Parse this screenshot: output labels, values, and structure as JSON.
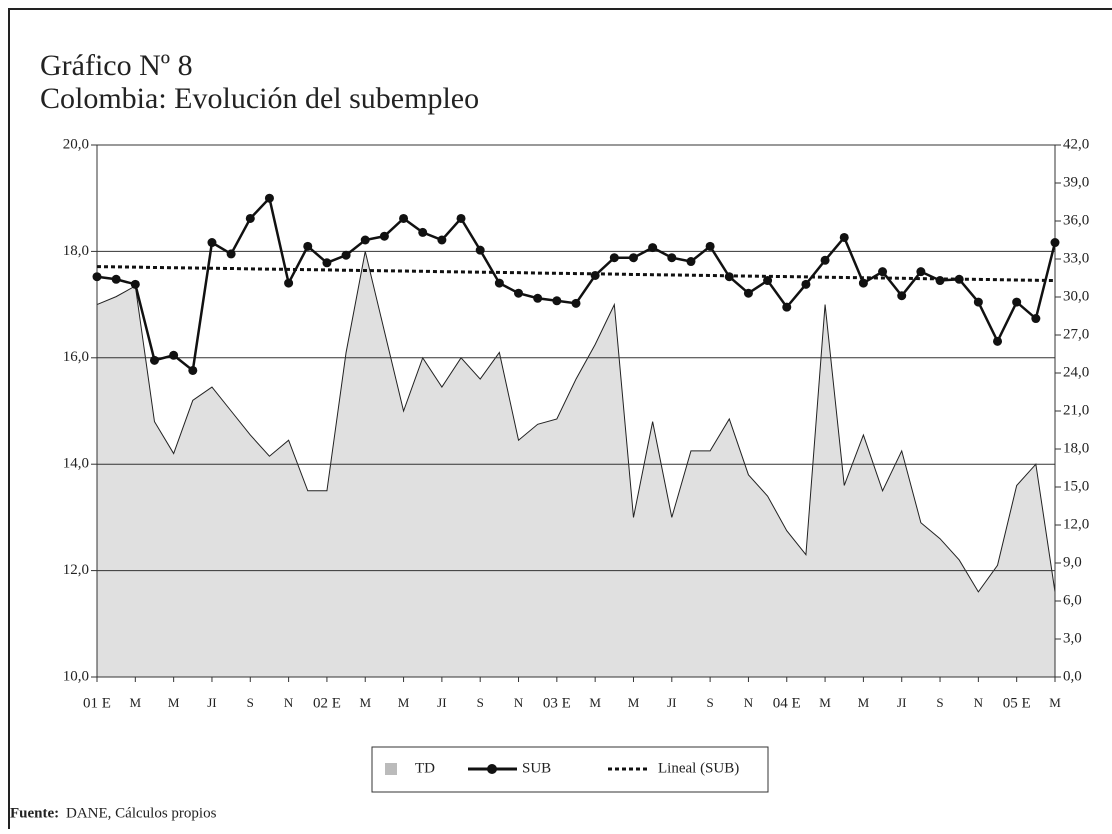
{
  "chart_data": {
    "type": "line",
    "title": "Gráfico Nº 8",
    "subtitle": "Colombia: Evolución del subempleo",
    "source_label": "Fuente:",
    "source": "DANE, Cálculos propios",
    "categories": [
      "01 E",
      null,
      "M",
      null,
      "M",
      null,
      "JI",
      null,
      "S",
      null,
      "N",
      null,
      "02 E",
      null,
      "M",
      null,
      "M",
      null,
      "JI",
      null,
      "S",
      null,
      "N",
      null,
      "03 E",
      null,
      "M",
      null,
      "M",
      null,
      "JI",
      null,
      "S",
      null,
      "N",
      null,
      "04 E",
      null,
      "M",
      null,
      "M",
      null,
      "JI",
      null,
      "S",
      null,
      "N",
      null,
      "05 E",
      null,
      "M"
    ],
    "series": [
      {
        "name": "TD",
        "kind": "area",
        "color": "#e0e0e0",
        "axis": "y",
        "values": [
          17.0,
          17.15,
          17.35,
          14.8,
          14.2,
          15.2,
          15.45,
          15.0,
          14.55,
          14.15,
          14.45,
          13.5,
          13.5,
          16.1,
          18.0,
          16.5,
          15.0,
          16.0,
          15.45,
          16.0,
          15.6,
          16.1,
          14.45,
          14.75,
          14.85,
          15.6,
          16.25,
          17.0,
          13.0,
          14.8,
          13.0,
          14.25,
          14.25,
          14.85,
          13.8,
          13.4,
          12.75,
          12.3,
          17.0,
          13.6,
          14.55,
          13.5,
          14.25,
          12.9,
          12.6,
          12.2,
          11.6,
          12.1,
          13.6,
          14.0,
          11.6
        ]
      },
      {
        "name": "SUB",
        "kind": "line-dots",
        "color": "#111111",
        "axis": "y2",
        "values": [
          31.6,
          31.4,
          31.0,
          25.0,
          25.4,
          24.2,
          34.3,
          33.4,
          36.2,
          37.8,
          31.1,
          34.0,
          32.7,
          33.3,
          34.5,
          34.8,
          36.2,
          35.1,
          34.5,
          36.2,
          33.7,
          31.1,
          30.3,
          29.9,
          29.7,
          29.5,
          31.7,
          33.1,
          33.1,
          33.9,
          33.1,
          32.8,
          34.0,
          31.6,
          30.3,
          31.3,
          29.2,
          31.0,
          32.9,
          34.7,
          31.1,
          32.0,
          30.1,
          32.0,
          31.3,
          31.4,
          29.6,
          26.5,
          29.6,
          28.3,
          34.3
        ]
      },
      {
        "name": "Lineal (SUB)",
        "kind": "dotted",
        "color": "#111111",
        "axis": "y2",
        "values": [
          32.4,
          32.38,
          32.36,
          32.33,
          32.31,
          32.29,
          32.27,
          32.25,
          32.22,
          32.2,
          32.18,
          32.16,
          32.14,
          32.11,
          32.09,
          32.07,
          32.05,
          32.03,
          32.0,
          31.98,
          31.96,
          31.94,
          31.92,
          31.89,
          31.87,
          31.85,
          31.83,
          31.81,
          31.78,
          31.76,
          31.74,
          31.72,
          31.7,
          31.67,
          31.65,
          31.63,
          31.61,
          31.59,
          31.56,
          31.54,
          31.52,
          31.5,
          31.48,
          31.45,
          31.43,
          31.41,
          31.39,
          31.37,
          31.34,
          31.32,
          31.3
        ]
      }
    ],
    "ylim": [
      10,
      20
    ],
    "yticks": [
      {
        "value": 10,
        "label": "10,0"
      },
      {
        "value": 12,
        "label": "12,0"
      },
      {
        "value": 14,
        "label": "14,0"
      },
      {
        "value": 16,
        "label": "16,0"
      },
      {
        "value": 18,
        "label": "18,0"
      },
      {
        "value": 20,
        "label": "20,0"
      }
    ],
    "y2lim": [
      0,
      42
    ],
    "y2ticks": [
      {
        "value": 0,
        "label": "0,0"
      },
      {
        "value": 3,
        "label": "3,0"
      },
      {
        "value": 6,
        "label": "6,0"
      },
      {
        "value": 9,
        "label": "9,0"
      },
      {
        "value": 12,
        "label": "12,0"
      },
      {
        "value": 15,
        "label": "15,0"
      },
      {
        "value": 18,
        "label": "18,0"
      },
      {
        "value": 21,
        "label": "21,0"
      },
      {
        "value": 24,
        "label": "24,0"
      },
      {
        "value": 27,
        "label": "27,0"
      },
      {
        "value": 30,
        "label": "30,0"
      },
      {
        "value": 33,
        "label": "33,0"
      },
      {
        "value": 36,
        "label": "36,0"
      },
      {
        "value": 39,
        "label": "39,0"
      },
      {
        "value": 42,
        "label": "42,0"
      }
    ],
    "grid": true,
    "legend": "bottom"
  }
}
